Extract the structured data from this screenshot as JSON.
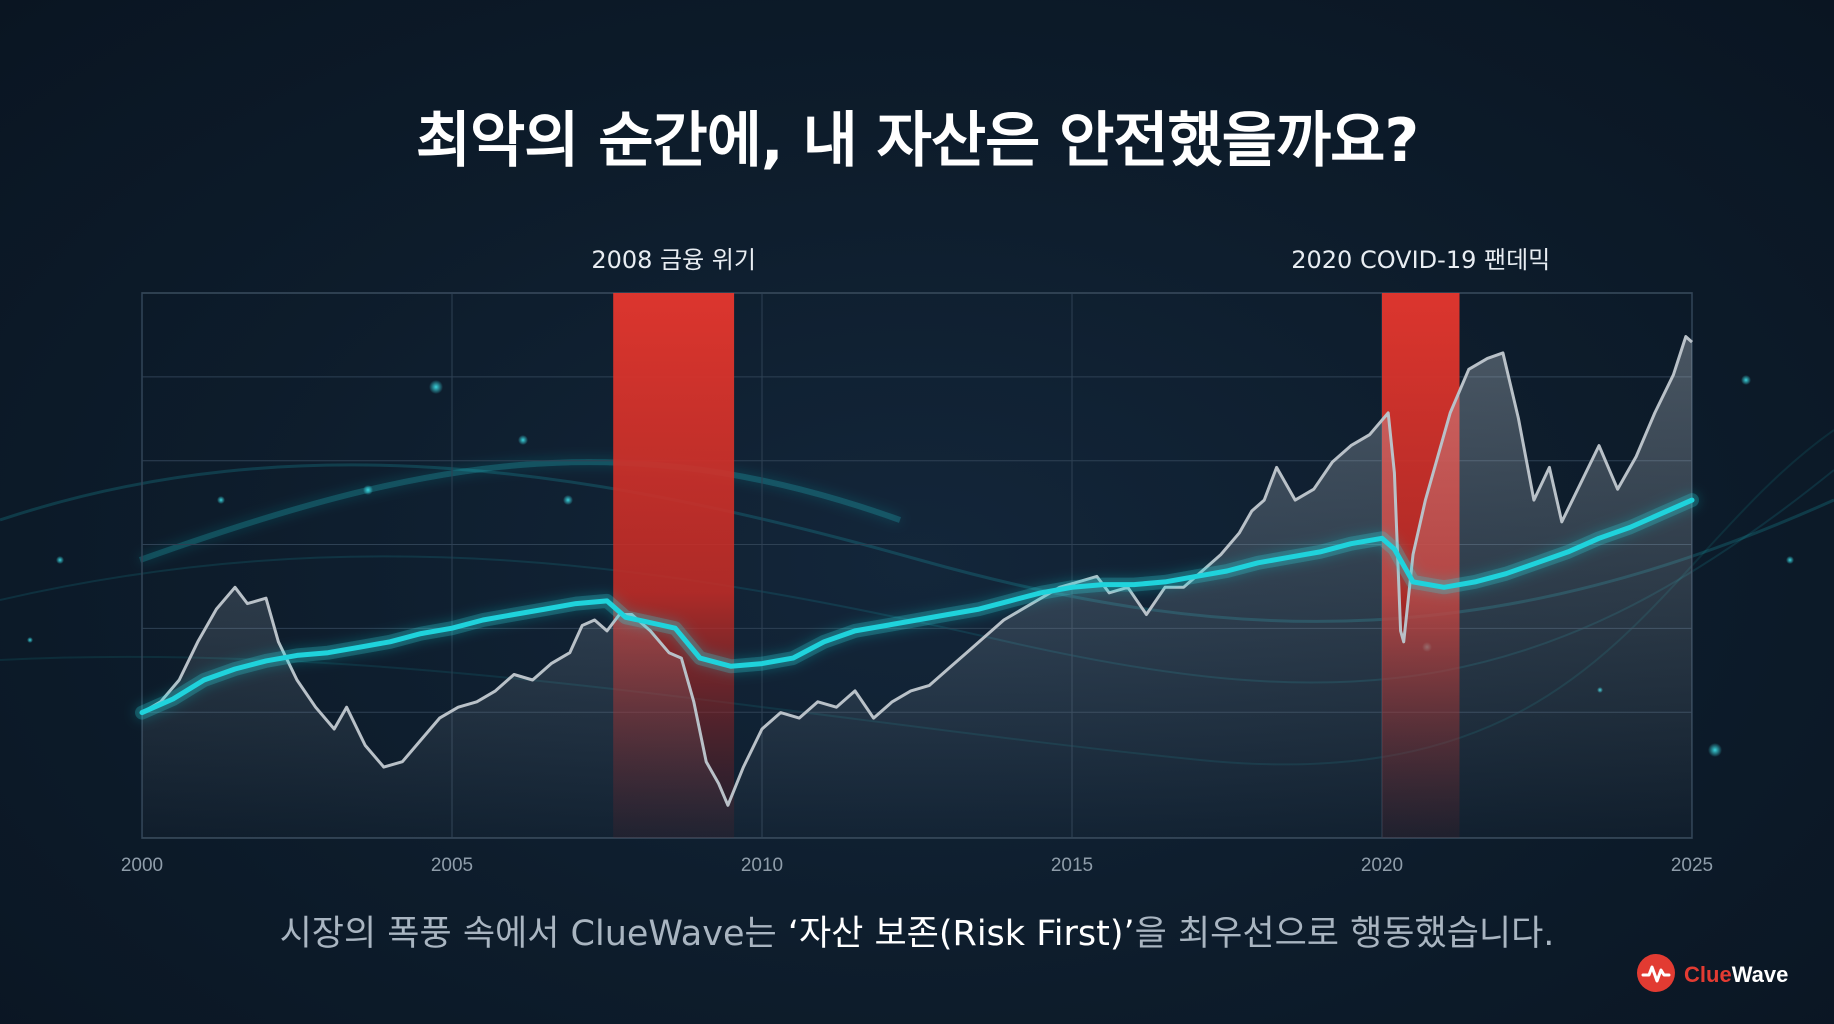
{
  "page": {
    "headline": "최악의 순간에, 내 자산은 안전했을까요?",
    "subtitle_prefix": "시장의 폭풍 속에서 ClueWave는 ",
    "subtitle_emphasis": "‘자산 보존(Risk First)’",
    "subtitle_suffix": "을 최우선으로 행동했습니다.",
    "brand": {
      "part1": "Clue",
      "part2": "Wave",
      "logo_icon": "wave-pulse-icon"
    }
  },
  "colors": {
    "accent_cyan": "#1fd3dc",
    "crisis_red": "#e0362e",
    "market_line": "#b9c1c8",
    "brand_red": "#e23b32"
  },
  "chart_data": {
    "type": "line",
    "title": "",
    "xlabel": "",
    "ylabel": "",
    "xlim": [
      2000,
      2025
    ],
    "ylim": [
      0,
      100
    ],
    "x_ticks": [
      "2000",
      "2005",
      "2010",
      "2015",
      "2020",
      "2025"
    ],
    "grid": true,
    "legend": "none",
    "highlight_bands": [
      {
        "label": "2008 금융 위기",
        "start": 2007.6,
        "end": 2009.55
      },
      {
        "label": "2020 COVID-19 팬데믹",
        "start": 2020.0,
        "end": 2021.25
      }
    ],
    "series": [
      {
        "role": "market",
        "color": "#b9c1c8",
        "points": [
          [
            2000.0,
            23
          ],
          [
            2000.3,
            25
          ],
          [
            2000.6,
            29
          ],
          [
            2000.9,
            36
          ],
          [
            2001.2,
            42
          ],
          [
            2001.5,
            46
          ],
          [
            2001.7,
            43
          ],
          [
            2002.0,
            44
          ],
          [
            2002.2,
            36
          ],
          [
            2002.5,
            29
          ],
          [
            2002.8,
            24
          ],
          [
            2003.1,
            20
          ],
          [
            2003.3,
            24
          ],
          [
            2003.6,
            17
          ],
          [
            2003.9,
            13
          ],
          [
            2004.2,
            14
          ],
          [
            2004.5,
            18
          ],
          [
            2004.8,
            22
          ],
          [
            2005.1,
            24
          ],
          [
            2005.4,
            25
          ],
          [
            2005.7,
            27
          ],
          [
            2006.0,
            30
          ],
          [
            2006.3,
            29
          ],
          [
            2006.6,
            32
          ],
          [
            2006.9,
            34
          ],
          [
            2007.1,
            39
          ],
          [
            2007.3,
            40
          ],
          [
            2007.5,
            38
          ],
          [
            2007.7,
            41
          ],
          [
            2007.9,
            41
          ],
          [
            2008.2,
            38
          ],
          [
            2008.5,
            34
          ],
          [
            2008.7,
            33
          ],
          [
            2008.9,
            25
          ],
          [
            2009.1,
            14
          ],
          [
            2009.3,
            10
          ],
          [
            2009.45,
            6
          ],
          [
            2009.7,
            13
          ],
          [
            2010.0,
            20
          ],
          [
            2010.3,
            23
          ],
          [
            2010.6,
            22
          ],
          [
            2010.9,
            25
          ],
          [
            2011.2,
            24
          ],
          [
            2011.5,
            27
          ],
          [
            2011.8,
            22
          ],
          [
            2012.1,
            25
          ],
          [
            2012.4,
            27
          ],
          [
            2012.7,
            28
          ],
          [
            2013.0,
            31
          ],
          [
            2013.3,
            34
          ],
          [
            2013.6,
            37
          ],
          [
            2013.9,
            40
          ],
          [
            2014.2,
            42
          ],
          [
            2014.5,
            44
          ],
          [
            2014.8,
            46
          ],
          [
            2015.1,
            47
          ],
          [
            2015.4,
            48
          ],
          [
            2015.6,
            45
          ],
          [
            2015.9,
            46
          ],
          [
            2016.2,
            41
          ],
          [
            2016.5,
            46
          ],
          [
            2016.8,
            46
          ],
          [
            2017.1,
            49
          ],
          [
            2017.4,
            52
          ],
          [
            2017.7,
            56
          ],
          [
            2017.9,
            60
          ],
          [
            2018.1,
            62
          ],
          [
            2018.3,
            68
          ],
          [
            2018.6,
            62
          ],
          [
            2018.9,
            64
          ],
          [
            2019.2,
            69
          ],
          [
            2019.5,
            72
          ],
          [
            2019.8,
            74
          ],
          [
            2020.1,
            78
          ],
          [
            2020.2,
            67
          ],
          [
            2020.3,
            38
          ],
          [
            2020.35,
            36
          ],
          [
            2020.5,
            52
          ],
          [
            2020.7,
            62
          ],
          [
            2020.9,
            70
          ],
          [
            2021.1,
            78
          ],
          [
            2021.4,
            86
          ],
          [
            2021.7,
            88
          ],
          [
            2021.95,
            89
          ],
          [
            2022.2,
            77
          ],
          [
            2022.45,
            62
          ],
          [
            2022.7,
            68
          ],
          [
            2022.9,
            58
          ],
          [
            2023.2,
            65
          ],
          [
            2023.5,
            72
          ],
          [
            2023.8,
            64
          ],
          [
            2024.1,
            70
          ],
          [
            2024.4,
            78
          ],
          [
            2024.7,
            85
          ],
          [
            2024.9,
            92
          ],
          [
            2025.0,
            91
          ]
        ]
      },
      {
        "role": "cluewave",
        "color": "#1fd3dc",
        "points": [
          [
            2000.0,
            23
          ],
          [
            2000.5,
            25.5
          ],
          [
            2001.0,
            29
          ],
          [
            2001.5,
            31
          ],
          [
            2002.0,
            32.5
          ],
          [
            2002.5,
            33.5
          ],
          [
            2003.0,
            34
          ],
          [
            2003.5,
            35
          ],
          [
            2004.0,
            36
          ],
          [
            2004.5,
            37.5
          ],
          [
            2005.0,
            38.5
          ],
          [
            2005.5,
            40
          ],
          [
            2006.0,
            41
          ],
          [
            2006.5,
            42
          ],
          [
            2007.0,
            43
          ],
          [
            2007.5,
            43.5
          ],
          [
            2007.8,
            40.5
          ],
          [
            2008.2,
            39.5
          ],
          [
            2008.6,
            38.5
          ],
          [
            2009.0,
            33
          ],
          [
            2009.5,
            31.5
          ],
          [
            2010.0,
            32
          ],
          [
            2010.5,
            33
          ],
          [
            2011.0,
            36
          ],
          [
            2011.5,
            38
          ],
          [
            2012.0,
            39
          ],
          [
            2012.5,
            40
          ],
          [
            2013.0,
            41
          ],
          [
            2013.5,
            42
          ],
          [
            2014.0,
            43.5
          ],
          [
            2014.5,
            45
          ],
          [
            2015.0,
            46
          ],
          [
            2015.5,
            46.5
          ],
          [
            2016.0,
            46.5
          ],
          [
            2016.5,
            47
          ],
          [
            2017.0,
            48
          ],
          [
            2017.5,
            49
          ],
          [
            2018.0,
            50.5
          ],
          [
            2018.5,
            51.5
          ],
          [
            2019.0,
            52.5
          ],
          [
            2019.5,
            54
          ],
          [
            2020.0,
            55
          ],
          [
            2020.2,
            53
          ],
          [
            2020.5,
            47
          ],
          [
            2021.0,
            46
          ],
          [
            2021.5,
            47
          ],
          [
            2022.0,
            48.5
          ],
          [
            2022.5,
            50.5
          ],
          [
            2023.0,
            52.5
          ],
          [
            2023.5,
            55
          ],
          [
            2024.0,
            57
          ],
          [
            2024.5,
            59.5
          ],
          [
            2025.0,
            62
          ]
        ]
      }
    ]
  }
}
